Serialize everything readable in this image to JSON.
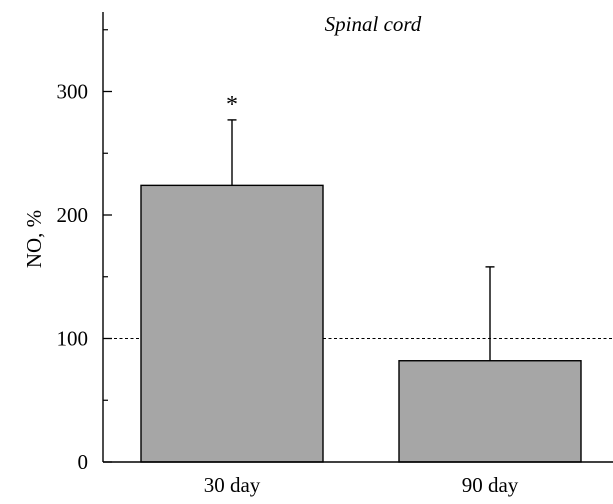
{
  "chart_data": {
    "type": "bar",
    "title": "Spinal cord",
    "categories": [
      "30 day",
      "90 day"
    ],
    "values": [
      224,
      82
    ],
    "error_plus": [
      53,
      76
    ],
    "significance": [
      "*",
      ""
    ],
    "ylabel": "NO, %",
    "xlabel": "",
    "ylim": [
      0,
      370
    ],
    "yticks_major": [
      0,
      100,
      200,
      300
    ],
    "yticks_minor": [
      50,
      150,
      250,
      350
    ],
    "reference_line": 100,
    "grid": false,
    "colors": {
      "bar_fill": "#a6a6a6",
      "bar_stroke": "#000000",
      "axis": "#000000",
      "reference_line": "#000000"
    }
  }
}
